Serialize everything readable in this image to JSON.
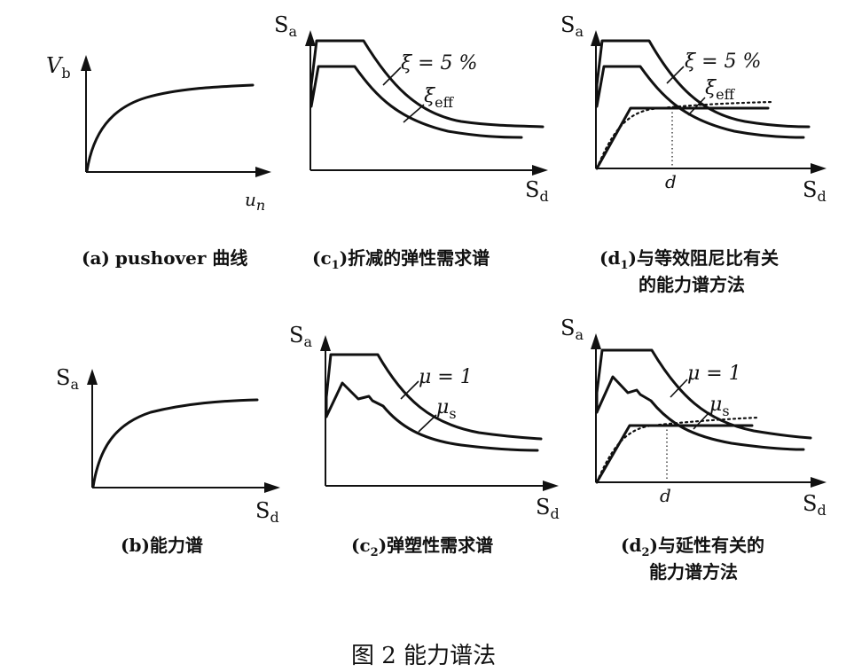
{
  "figure_caption": "图 2  能力谱法",
  "panels": {
    "a": {
      "caption_prefix": "(a)",
      "caption_text": "pushover 曲线",
      "y_axis": {
        "main": "V",
        "sub": "b"
      },
      "x_axis": {
        "main": "u",
        "sub": "n"
      }
    },
    "b": {
      "caption_prefix": "(b)",
      "caption_text": "能力谱",
      "y_axis": {
        "main": "S",
        "sub": "a"
      },
      "x_axis": {
        "main": "S",
        "sub": "d"
      }
    },
    "c1": {
      "caption_prefix": "(c",
      "caption_sub": "1",
      "caption_text": ")折减的弹性需求谱",
      "y_axis": {
        "main": "S",
        "sub": "a"
      },
      "x_axis": {
        "main": "S",
        "sub": "d"
      },
      "label_upper": "ξ = 5 %",
      "label_lower": {
        "main": "ξ",
        "sub": "eff"
      }
    },
    "c2": {
      "caption_prefix": "(c",
      "caption_sub": "2",
      "caption_text": ")弹塑性需求谱",
      "y_axis": {
        "main": "S",
        "sub": "a"
      },
      "x_axis": {
        "main": "S",
        "sub": "d"
      },
      "label_upper": "μ = 1",
      "label_lower": {
        "main": "μ",
        "sub": "s"
      }
    },
    "d1": {
      "caption_line1_prefix": "(d",
      "caption_sub": "1",
      "caption_line1_text": ")与等效阻尼比有关",
      "caption_line2": "的能力谱方法",
      "y_axis": {
        "main": "S",
        "sub": "a"
      },
      "x_axis": {
        "main": "S",
        "sub": "d"
      },
      "label_upper": "ξ = 5 %",
      "label_lower": {
        "main": "ξ",
        "sub": "eff"
      },
      "marker": "d"
    },
    "d2": {
      "caption_line1_prefix": "(d",
      "caption_sub": "2",
      "caption_line1_text": ")与延性有关的",
      "caption_line2": "能力谱方法",
      "y_axis": {
        "main": "S",
        "sub": "a"
      },
      "x_axis": {
        "main": "S",
        "sub": "d"
      },
      "label_upper": "μ = 1",
      "label_lower": {
        "main": "μ",
        "sub": "s"
      },
      "marker": "d"
    }
  }
}
